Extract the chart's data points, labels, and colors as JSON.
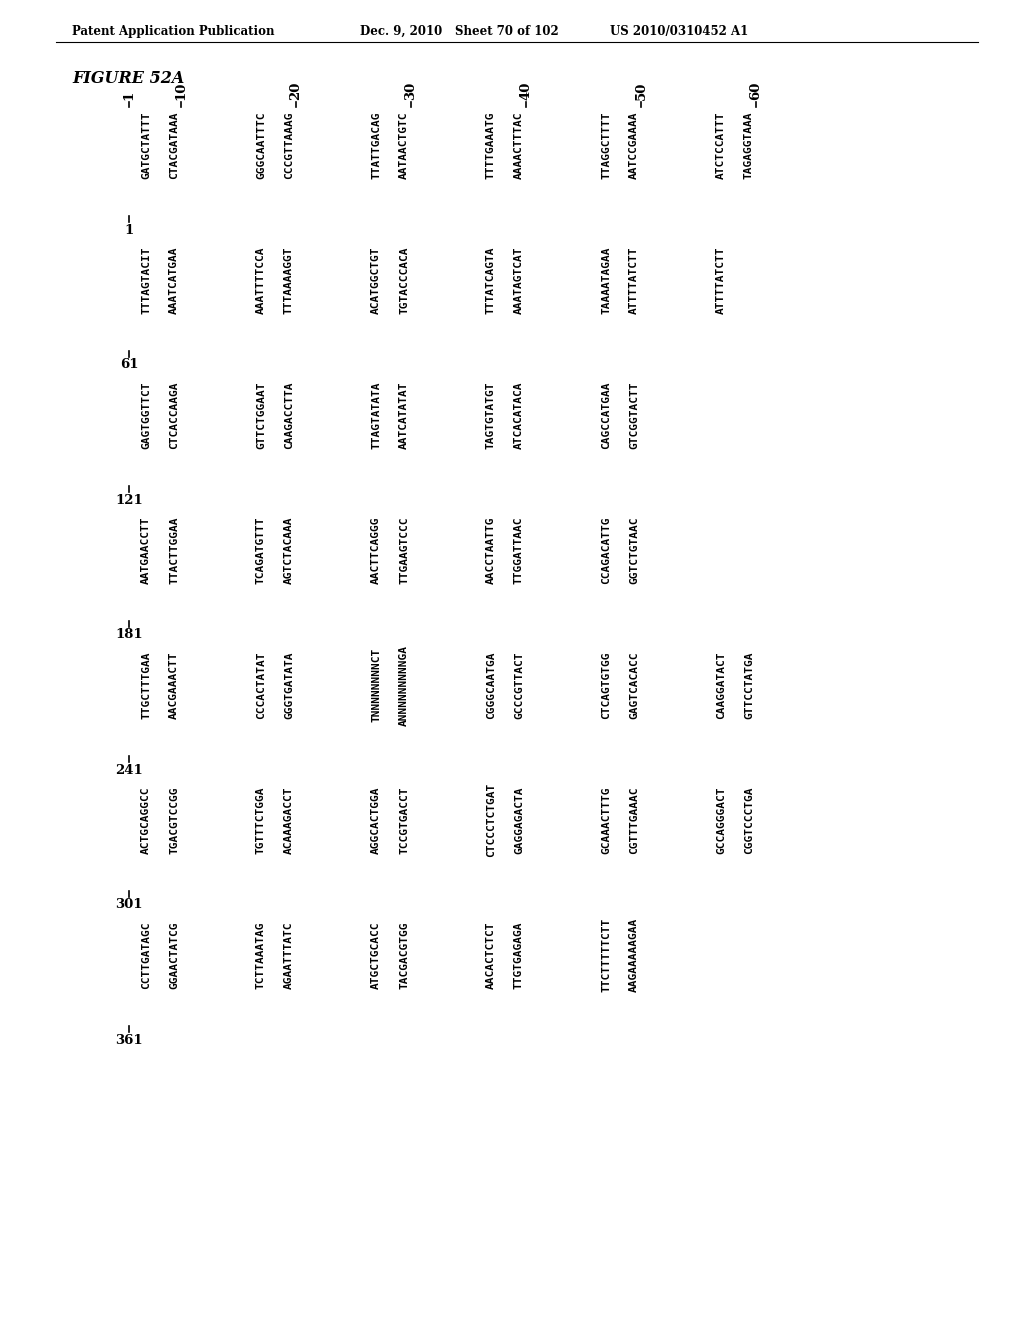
{
  "header_left": "Patent Application Publication",
  "header_mid": "Dec. 9, 2010",
  "header_mid2": "Sheet 70 of 102",
  "header_right": "US 2010/0310452 A1",
  "figure_label": "FIGURE 52A",
  "col_markers": [
    "10",
    "20",
    "30",
    "40",
    "50",
    "60"
  ],
  "seq_blocks": [
    {
      "num": "1",
      "groups": [
        [
          "GATGCTATTT",
          "CTACGATAAA"
        ],
        [
          "GGGCAATTTC",
          "CCCGTTAAAG"
        ],
        [
          "TTATTGACAG",
          "AATAACTGTC"
        ],
        [
          "TTTTGAAATG",
          "AAAACTTTAC"
        ],
        [
          "TTAGGCTTTT",
          "AATCCGAAAA"
        ],
        [
          "ATCTCCATTT",
          "TAGAGGTAAA"
        ]
      ]
    },
    {
      "num": "61",
      "groups": [
        [
          "TTTAGTACIT",
          "AAATCATGAA"
        ],
        [
          "AAATTTTCCA",
          "TTTAAAAGGT"
        ],
        [
          "ACATGGCTGT",
          "TGTACCCACA"
        ],
        [
          "TTTATCAGTA",
          "AAATAGTCAT"
        ],
        [
          "TAAAATAGAA",
          "ATTTTATCTT"
        ],
        [
          "ATTTTATCTT",
          ""
        ]
      ]
    },
    {
      "num": "121",
      "groups": [
        [
          "GAGTGGTTCT",
          "CTCACCAAGA"
        ],
        [
          "GTTCTGGAAT",
          "CAAGACCTTA"
        ],
        [
          "TTAGTATATA",
          "AATCATATAT"
        ],
        [
          "TAGTGTATGT",
          "ATCACATACA"
        ],
        [
          "CAGCCATGAA",
          "GTCGGTACTT"
        ],
        [
          "",
          ""
        ]
      ]
    },
    {
      "num": "181",
      "groups": [
        [
          "AATGAACCTT",
          "TTACTTGGAA"
        ],
        [
          "TCAGATGTTT",
          "AGTCTACAAA"
        ],
        [
          "AACTTCAGGG",
          "TTGAAGTCCC"
        ],
        [
          "AACCTAATTG",
          "TTGGATTAAC"
        ],
        [
          "CCAGACATTG",
          "GGTCTGTAAC"
        ],
        [
          "",
          ""
        ]
      ]
    },
    {
      "num": "241",
      "groups": [
        [
          "TTGCTTTGAA",
          "AACGAAACTT"
        ],
        [
          "CCCACTATAT",
          "GGGTGATATA"
        ],
        [
          "TNNNNNNNNCT",
          "ANNNNNNNNNGA"
        ],
        [
          "CGGGCAATGA",
          "GCCCGTTACT"
        ],
        [
          "CTCAGTGTGG",
          "GAGTCACACC"
        ],
        [
          "CAAGGATACT",
          "GTTCCTATGA"
        ]
      ]
    },
    {
      "num": "301",
      "groups": [
        [
          "ACTGCAGGCC",
          "TGACGTCCGG"
        ],
        [
          "TGTTTCTGGA",
          "ACAAAGACCT"
        ],
        [
          "AGGCACTGGA",
          "TCCGTGACCT"
        ],
        [
          "CTCCCTCTGAT",
          "GAGGAGACTA"
        ],
        [
          "GCAAACTTTG",
          "CGTTTGAAAC"
        ],
        [
          "GCCAGGGACT",
          "CGGTCCCTGA"
        ]
      ]
    },
    {
      "num": "361",
      "groups": [
        [
          "CCTTGATAGC",
          "GGAACTATCG"
        ],
        [
          "TCTTAAATAG",
          "AGAATTTATC"
        ],
        [
          "ATGCTGCACC",
          "TACGACGTGG"
        ],
        [
          "AACACTCTCT",
          "TTGTGAGAGA"
        ],
        [
          "TTCTTTTTCTT",
          "AAGAAAAAGAA"
        ],
        [
          "",
          ""
        ]
      ]
    }
  ],
  "bg_color": "#ffffff",
  "text_color": "#000000"
}
